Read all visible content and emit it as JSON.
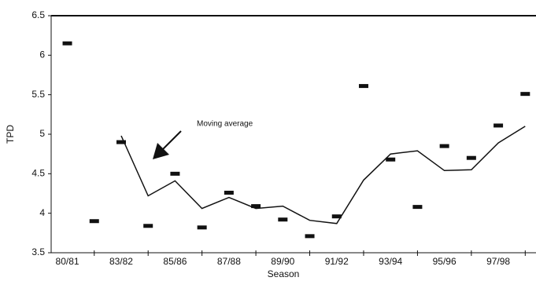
{
  "chart_data": {
    "type": "line",
    "y_label": "TPD",
    "x_label": "Season",
    "annotation": "Moving average",
    "categories": [
      "80/81",
      null,
      "83/82",
      null,
      "85/86",
      null,
      "87/88",
      null,
      "89/90",
      null,
      "91/92",
      null,
      "93/94",
      null,
      "95/96",
      null,
      "97/98",
      null
    ],
    "series": [
      {
        "style": "marker",
        "color": "#111111",
        "values": [
          6.15,
          3.9,
          4.9,
          3.84,
          4.5,
          3.82,
          4.26,
          4.09,
          3.92,
          3.71,
          3.96,
          5.61,
          4.68,
          4.08,
          4.85,
          4.7,
          5.11,
          5.51
        ]
      },
      {
        "style": "line",
        "color": "#111111",
        "values": [
          null,
          null,
          4.98,
          4.22,
          4.41,
          4.06,
          4.2,
          4.06,
          4.09,
          3.91,
          3.87,
          4.42,
          4.75,
          4.79,
          4.54,
          4.55,
          4.89,
          5.1
        ]
      }
    ],
    "ylim": [
      3.5,
      6.5
    ],
    "yticks": [
      3.5,
      4,
      4.5,
      5,
      5.5,
      6,
      6.5
    ]
  }
}
